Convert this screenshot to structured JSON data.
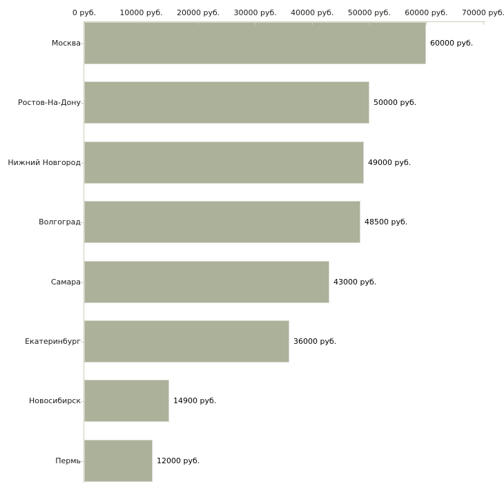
{
  "chart_data": {
    "type": "bar",
    "orientation": "horizontal",
    "title": "",
    "xlabel": "",
    "ylabel": "",
    "grid": false,
    "legend": false,
    "categories": [
      "Москва",
      "Ростов-На-Дону",
      "Нижний Новгород",
      "Волгоград",
      "Самара",
      "Екатеринбург",
      "Новосибирск",
      "Пермь"
    ],
    "values": [
      60000,
      50000,
      49000,
      48500,
      43000,
      36000,
      14900,
      12000
    ],
    "value_labels": [
      "60000 руб.",
      "50000 руб.",
      "49000 руб.",
      "48500 руб.",
      "43000 руб.",
      "36000 руб.",
      "14900 руб.",
      "12000 руб."
    ],
    "x_axis": {
      "position": "top",
      "min": 0,
      "max": 70000,
      "tick_interval": 10000,
      "tick_values": [
        0,
        10000,
        20000,
        30000,
        40000,
        50000,
        60000,
        70000
      ],
      "tick_labels": [
        "0 руб.",
        "10000 руб.",
        "20000 руб.",
        "30000 руб.",
        "40000 руб.",
        "50000 руб.",
        "60000 руб.",
        "70000 руб."
      ]
    },
    "colors": {
      "bar_fill": "#acb19a",
      "bar_border": "#d6d6cc",
      "axis_line": "#cdccb8",
      "text": "#1a1a1a",
      "background": "#ffffff"
    }
  }
}
